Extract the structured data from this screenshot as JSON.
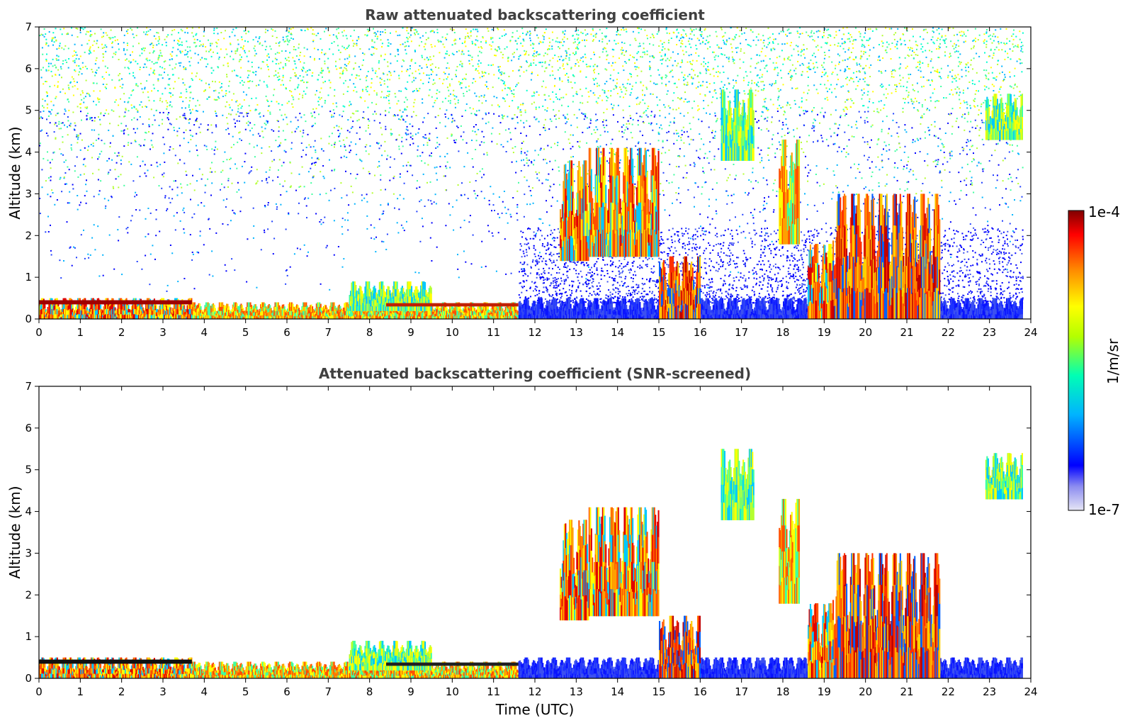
{
  "chart_data": [
    {
      "type": "heatmap",
      "title": "Raw attenuated backscattering coefficient",
      "xlabel": "",
      "ylabel": "Altitude (km)",
      "xlim": [
        0,
        24
      ],
      "ylim": [
        0,
        7
      ],
      "xticks": [
        "0",
        "1",
        "2",
        "3",
        "4",
        "5",
        "6",
        "7",
        "8",
        "9",
        "10",
        "11",
        "12",
        "13",
        "14",
        "15",
        "16",
        "17",
        "18",
        "19",
        "20",
        "21",
        "22",
        "23",
        "24"
      ],
      "yticks": [
        "0",
        "1",
        "2",
        "3",
        "4",
        "5",
        "6",
        "7"
      ],
      "features": [
        {
          "t": [
            0,
            3.7
          ],
          "z": [
            0,
            0.5
          ],
          "level": "high",
          "desc": "boundary layer"
        },
        {
          "t": [
            3.7,
            11.6
          ],
          "z": [
            0,
            0.4
          ],
          "level": "medium-high",
          "desc": "boundary layer"
        },
        {
          "t": [
            7.5,
            9.5
          ],
          "z": [
            0.2,
            0.9
          ],
          "level": "medium"
        },
        {
          "t": [
            11.6,
            23.8
          ],
          "z": [
            0,
            0.5
          ],
          "level": "low"
        },
        {
          "t": [
            12.6,
            13.3
          ],
          "z": [
            1.4,
            3.8
          ],
          "level": "high"
        },
        {
          "t": [
            13.3,
            15.0
          ],
          "z": [
            1.5,
            4.1
          ],
          "level": "high"
        },
        {
          "t": [
            15.0,
            16.0
          ],
          "z": [
            0,
            1.5
          ],
          "level": "very-high"
        },
        {
          "t": [
            16.5,
            17.3
          ],
          "z": [
            3.8,
            5.5
          ],
          "level": "medium"
        },
        {
          "t": [
            17.9,
            18.4
          ],
          "z": [
            1.8,
            4.3
          ],
          "level": "medium-high"
        },
        {
          "t": [
            18.6,
            19.2
          ],
          "z": [
            0,
            1.8
          ],
          "level": "high"
        },
        {
          "t": [
            19.2,
            21.8
          ],
          "z": [
            0,
            3.0
          ],
          "level": "very-high"
        },
        {
          "t": [
            22.9,
            23.8
          ],
          "z": [
            4.3,
            5.4
          ],
          "level": "medium"
        }
      ]
    },
    {
      "type": "heatmap",
      "title": "Attenuated backscattering coefficient (SNR-screened)",
      "xlabel": "Time (UTC)",
      "ylabel": "Altitude (km)",
      "xlim": [
        0,
        24
      ],
      "ylim": [
        0,
        7
      ],
      "xticks": [
        "0",
        "1",
        "2",
        "3",
        "4",
        "5",
        "6",
        "7",
        "8",
        "9",
        "10",
        "11",
        "12",
        "13",
        "14",
        "15",
        "16",
        "17",
        "18",
        "19",
        "20",
        "21",
        "22",
        "23",
        "24"
      ],
      "yticks": [
        "0",
        "1",
        "2",
        "3",
        "4",
        "5",
        "6",
        "7"
      ]
    }
  ],
  "colorbar": {
    "max_label": "1e-4",
    "min_label": "1e-7",
    "unit": "1/m/sr",
    "colormap": [
      "#e6e6f5",
      "#0000ff",
      "#00c8ff",
      "#00ff80",
      "#ffff00",
      "#ff8000",
      "#ff0000",
      "#800000"
    ]
  }
}
